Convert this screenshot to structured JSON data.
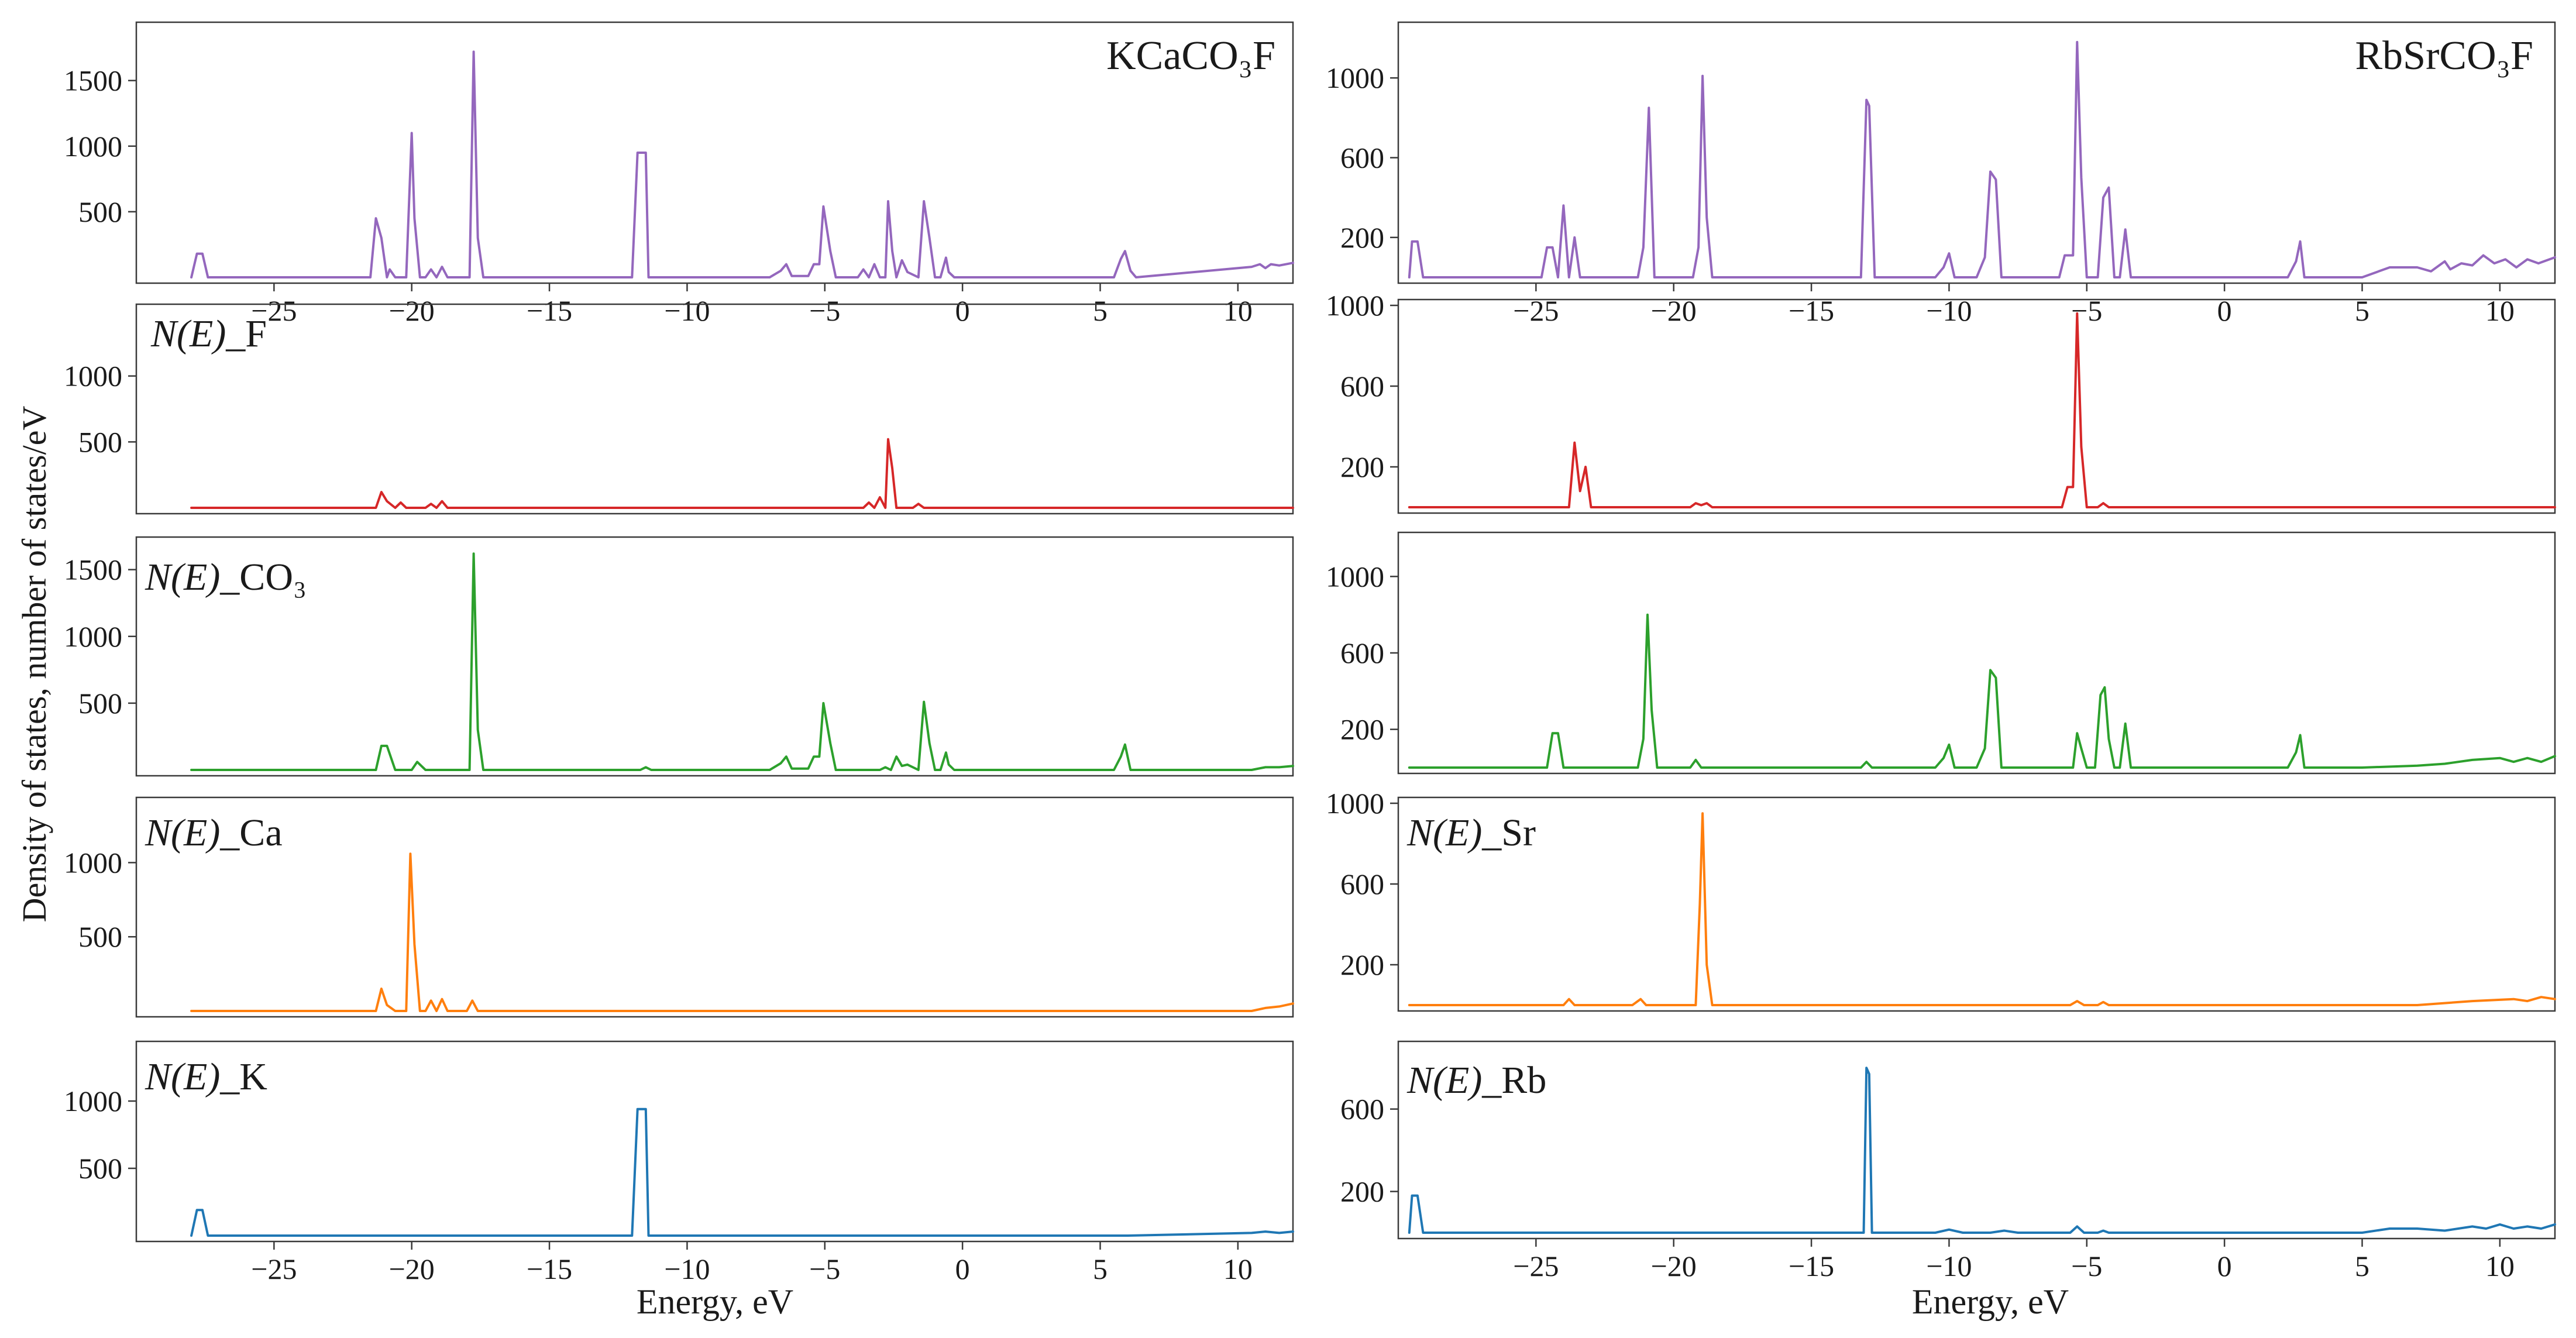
{
  "figure": {
    "ylabel": "Density of states, number of states/eV",
    "xlabel": "Energy, eV"
  },
  "colors": {
    "total": "#9467bd",
    "F": "#d62728",
    "CO3": "#2ca02c",
    "A": "#ff7f0e",
    "B": "#1f77b4"
  },
  "chart_data": [
    {
      "type": "line",
      "id": "kca-total",
      "title": "KCaCO₃F",
      "label": "",
      "color": "#9467bd",
      "xlim": [
        -30,
        12
      ],
      "ylim": [
        0,
        1900
      ],
      "yticks": [
        500,
        1000,
        1500
      ],
      "xticks": [
        -25,
        -20,
        -15,
        -10,
        -5,
        0,
        5,
        10
      ],
      "x": [
        -28,
        -27.8,
        -27.6,
        -27.4,
        -21.5,
        -21.3,
        -21.1,
        -20.9,
        -20.8,
        -20.6,
        -20.4,
        -20.2,
        -20.0,
        -19.9,
        -19.7,
        -19.5,
        -19.3,
        -19.1,
        -18.9,
        -18.7,
        -18.5,
        -17.9,
        -17.75,
        -17.6,
        -17.4,
        -17.2,
        -12.0,
        -11.8,
        -11.7,
        -11.5,
        -11.4,
        -11.2,
        -7.0,
        -6.6,
        -6.4,
        -6.2,
        -5.6,
        -5.4,
        -5.2,
        -5.05,
        -4.8,
        -4.6,
        -3.8,
        -3.6,
        -3.4,
        -3.2,
        -3.0,
        -2.8,
        -2.7,
        -2.55,
        -2.4,
        -2.2,
        -2.0,
        -1.6,
        -1.4,
        -1.2,
        -1.0,
        -0.8,
        -0.6,
        -0.5,
        -0.3,
        -0.1,
        0.1,
        5.5,
        5.75,
        5.9,
        6.1,
        6.3,
        10.5,
        10.8,
        11.0,
        11.2,
        11.5,
        12.0
      ],
      "values": [
        0,
        180,
        180,
        0,
        0,
        450,
        300,
        0,
        60,
        0,
        0,
        0,
        1100,
        450,
        0,
        0,
        60,
        0,
        80,
        0,
        0,
        0,
        1720,
        300,
        0,
        0,
        0,
        950,
        950,
        950,
        0,
        0,
        0,
        50,
        100,
        10,
        10,
        100,
        100,
        540,
        200,
        0,
        0,
        60,
        0,
        100,
        0,
        0,
        580,
        200,
        0,
        130,
        40,
        0,
        580,
        300,
        0,
        0,
        150,
        40,
        0,
        0,
        0,
        0,
        140,
        200,
        50,
        0,
        80,
        100,
        70,
        100,
        90,
        110
      ]
    },
    {
      "type": "line",
      "id": "kca-f",
      "title": "",
      "label": "F",
      "color": "#d62728",
      "xlim": [
        -30,
        12
      ],
      "ylim": [
        0,
        1500
      ],
      "yticks": [
        500,
        1000
      ],
      "xticks": [],
      "x": [
        -28,
        -21.3,
        -21.1,
        -20.9,
        -20.6,
        -20.4,
        -20.2,
        -19.5,
        -19.3,
        -19.1,
        -18.9,
        -18.7,
        -18.5,
        -3.6,
        -3.4,
        -3.2,
        -3.0,
        -2.8,
        -2.7,
        -2.55,
        -2.4,
        -1.8,
        -1.6,
        -1.4,
        -1.2,
        12.0
      ],
      "values": [
        0,
        0,
        120,
        50,
        0,
        40,
        0,
        0,
        30,
        0,
        50,
        0,
        0,
        0,
        40,
        0,
        80,
        0,
        520,
        300,
        0,
        0,
        30,
        0,
        0,
        0
      ]
    },
    {
      "type": "line",
      "id": "kca-co3",
      "title": "",
      "label": "CO₃",
      "color": "#2ca02c",
      "xlim": [
        -30,
        12
      ],
      "ylim": [
        0,
        1700
      ],
      "yticks": [
        500,
        1000,
        1500
      ],
      "xticks": [],
      "x": [
        -28,
        -21.3,
        -21.1,
        -20.9,
        -20.6,
        -20.0,
        -19.8,
        -19.5,
        -18.0,
        -17.9,
        -17.75,
        -17.6,
        -17.4,
        -11.7,
        -11.5,
        -11.3,
        -7.0,
        -6.6,
        -6.4,
        -6.2,
        -5.6,
        -5.4,
        -5.2,
        -5.05,
        -4.8,
        -4.6,
        -3.0,
        -2.8,
        -2.6,
        -2.4,
        -2.2,
        -2.0,
        -1.6,
        -1.4,
        -1.2,
        -1.0,
        -0.8,
        -0.6,
        -0.5,
        -0.3,
        -0.1,
        5.5,
        5.75,
        5.9,
        6.1,
        10.5,
        11.0,
        11.5,
        12.0
      ],
      "values": [
        0,
        0,
        180,
        180,
        0,
        0,
        60,
        0,
        0,
        0,
        1620,
        300,
        0,
        0,
        20,
        0,
        0,
        50,
        100,
        10,
        10,
        100,
        100,
        500,
        200,
        0,
        0,
        20,
        0,
        100,
        30,
        40,
        0,
        510,
        200,
        0,
        0,
        130,
        40,
        0,
        0,
        0,
        100,
        190,
        0,
        0,
        20,
        20,
        30
      ]
    },
    {
      "type": "line",
      "id": "kca-ca",
      "title": "",
      "label": "Ca",
      "color": "#ff7f0e",
      "xlim": [
        -30,
        12
      ],
      "ylim": [
        0,
        1400
      ],
      "yticks": [
        500,
        1000
      ],
      "xticks": [],
      "x": [
        -28,
        -21.3,
        -21.1,
        -20.9,
        -20.6,
        -20.2,
        -20.05,
        -19.9,
        -19.7,
        -19.5,
        -19.3,
        -19.1,
        -18.9,
        -18.7,
        -18.5,
        -18.0,
        -17.8,
        -17.6,
        -17.4,
        10.5,
        11.0,
        11.5,
        12.0
      ],
      "values": [
        0,
        0,
        150,
        40,
        0,
        0,
        1060,
        450,
        0,
        0,
        70,
        0,
        80,
        0,
        0,
        0,
        70,
        0,
        0,
        0,
        20,
        30,
        50
      ]
    },
    {
      "type": "line",
      "id": "kca-k",
      "title": "",
      "label": "K",
      "color": "#1f77b4",
      "xlim": [
        -30,
        12
      ],
      "ylim": [
        0,
        1400
      ],
      "yticks": [
        500,
        1000
      ],
      "xticks": [
        -25,
        -20,
        -15,
        -10,
        -5,
        0,
        5,
        10
      ],
      "x": [
        -28,
        -27.8,
        -27.6,
        -27.4,
        -12.0,
        -11.8,
        -11.7,
        -11.5,
        -11.4,
        -11.2,
        6.0,
        10.5,
        11.0,
        11.5,
        12.0
      ],
      "values": [
        0,
        190,
        190,
        0,
        0,
        940,
        940,
        940,
        0,
        0,
        0,
        20,
        30,
        20,
        30
      ]
    },
    {
      "type": "line",
      "id": "rbsr-total",
      "title": "RbSrCO₃F",
      "label": "",
      "color": "#9467bd",
      "xlim": [
        -30,
        12
      ],
      "ylim": [
        0,
        1250
      ],
      "yticks": [
        200,
        600,
        1000
      ],
      "xticks": [
        -25,
        -20,
        -15,
        -10,
        -5,
        0,
        5,
        10
      ],
      "x": [
        -29.6,
        -29.5,
        -29.3,
        -29.1,
        -24.8,
        -24.6,
        -24.4,
        -24.2,
        -24.0,
        -23.8,
        -23.6,
        -23.4,
        -21.5,
        -21.3,
        -21.1,
        -20.9,
        -20.7,
        -19.3,
        -19.1,
        -18.95,
        -18.8,
        -18.6,
        -13.4,
        -13.2,
        -13.0,
        -12.9,
        -12.7,
        -12.5,
        -10.5,
        -10.2,
        -10.0,
        -9.8,
        -9.0,
        -8.7,
        -8.5,
        -8.3,
        -8.1,
        -7.9,
        -7.7,
        -6.0,
        -5.8,
        -5.5,
        -5.35,
        -5.2,
        -5.0,
        -4.6,
        -4.4,
        -4.2,
        -4.0,
        -3.8,
        -3.6,
        -3.4,
        -3.2,
        2.3,
        2.6,
        2.75,
        2.9,
        5.0,
        6.0,
        7.0,
        7.5,
        8.0,
        8.2,
        8.6,
        9.0,
        9.4,
        9.8,
        10.2,
        10.6,
        11.0,
        11.4,
        12.0
      ],
      "values": [
        0,
        180,
        180,
        0,
        0,
        150,
        150,
        0,
        360,
        0,
        200,
        0,
        0,
        0,
        150,
        850,
        0,
        0,
        150,
        1010,
        300,
        0,
        0,
        0,
        890,
        860,
        0,
        0,
        0,
        50,
        120,
        0,
        0,
        100,
        530,
        490,
        0,
        0,
        0,
        0,
        110,
        110,
        1180,
        500,
        0,
        0,
        400,
        450,
        0,
        0,
        240,
        0,
        0,
        0,
        80,
        180,
        0,
        0,
        50,
        50,
        30,
        80,
        40,
        70,
        60,
        110,
        70,
        90,
        50,
        90,
        70,
        100
      ]
    },
    {
      "type": "line",
      "id": "rbsr-f",
      "title": "",
      "label": "",
      "color": "#d62728",
      "xlim": [
        -30,
        12
      ],
      "ylim": [
        0,
        1000
      ],
      "yticks": [
        200,
        600,
        1000
      ],
      "xticks": [],
      "x": [
        -29.6,
        -24.0,
        -23.8,
        -23.6,
        -23.4,
        -23.2,
        -23.0,
        -19.4,
        -19.2,
        -19.0,
        -18.8,
        -18.6,
        -5.9,
        -5.7,
        -5.5,
        -5.35,
        -5.2,
        -5.0,
        -4.6,
        -4.4,
        -4.2,
        12.0
      ],
      "values": [
        0,
        0,
        0,
        320,
        80,
        200,
        0,
        0,
        20,
        10,
        20,
        0,
        0,
        100,
        100,
        960,
        300,
        0,
        0,
        20,
        0,
        0
      ]
    },
    {
      "type": "line",
      "id": "rbsr-co3",
      "title": "",
      "label": "",
      "color": "#2ca02c",
      "xlim": [
        -30,
        12
      ],
      "ylim": [
        0,
        1200
      ],
      "yticks": [
        200,
        600,
        1000
      ],
      "xticks": [],
      "x": [
        -29.6,
        -24.6,
        -24.4,
        -24.2,
        -24.0,
        -21.3,
        -21.1,
        -20.95,
        -20.8,
        -20.6,
        -19.4,
        -19.2,
        -19.0,
        -13.2,
        -13.0,
        -12.8,
        -10.5,
        -10.2,
        -10.0,
        -9.8,
        -9.0,
        -8.7,
        -8.5,
        -8.3,
        -8.1,
        -7.9,
        -5.7,
        -5.5,
        -5.35,
        -5.2,
        -5.0,
        -4.7,
        -4.5,
        -4.35,
        -4.2,
        -4.0,
        -3.8,
        -3.6,
        -3.4,
        -3.2,
        2.3,
        2.6,
        2.75,
        2.9,
        5.0,
        7.0,
        8.0,
        9.0,
        10.0,
        10.5,
        11.0,
        11.5,
        12.0
      ],
      "values": [
        0,
        0,
        180,
        180,
        0,
        0,
        150,
        800,
        300,
        0,
        0,
        40,
        0,
        0,
        30,
        0,
        0,
        50,
        120,
        0,
        0,
        100,
        510,
        470,
        0,
        0,
        0,
        0,
        180,
        100,
        0,
        0,
        380,
        420,
        150,
        0,
        0,
        230,
        0,
        0,
        0,
        80,
        170,
        0,
        0,
        10,
        20,
        40,
        50,
        30,
        50,
        30,
        60
      ]
    },
    {
      "type": "line",
      "id": "rbsr-sr",
      "title": "",
      "label": "Sr",
      "color": "#ff7f0e",
      "xlim": [
        -30,
        12
      ],
      "ylim": [
        0,
        1000
      ],
      "yticks": [
        200,
        600,
        1000
      ],
      "xticks": [],
      "x": [
        -29.6,
        -24.0,
        -23.8,
        -23.6,
        -21.5,
        -21.2,
        -21.0,
        -19.2,
        -19.05,
        -18.95,
        -18.8,
        -18.6,
        -5.6,
        -5.35,
        -5.1,
        -4.6,
        -4.4,
        -4.2,
        7.0,
        9.0,
        10.5,
        11.0,
        11.5,
        12.0
      ],
      "values": [
        0,
        0,
        30,
        0,
        0,
        30,
        0,
        0,
        500,
        950,
        200,
        0,
        0,
        20,
        0,
        0,
        15,
        0,
        0,
        20,
        30,
        20,
        40,
        30
      ]
    },
    {
      "type": "line",
      "id": "rbsr-rb",
      "title": "",
      "label": "Rb",
      "color": "#1f77b4",
      "xlim": [
        -30,
        12
      ],
      "ylim": [
        0,
        900
      ],
      "yticks": [
        200,
        600
      ],
      "xticks": [
        -25,
        -20,
        -15,
        -10,
        -5,
        0,
        5,
        10
      ],
      "x": [
        -29.6,
        -29.5,
        -29.3,
        -29.1,
        -13.3,
        -13.1,
        -13.0,
        -12.9,
        -12.8,
        -12.6,
        -10.5,
        -10.0,
        -9.5,
        -8.5,
        -8.0,
        -7.5,
        -5.6,
        -5.35,
        -5.1,
        -4.6,
        -4.4,
        -4.2,
        5.0,
        6.0,
        7.0,
        8.0,
        9.0,
        9.5,
        10.0,
        10.5,
        11.0,
        11.5,
        12.0
      ],
      "values": [
        0,
        180,
        180,
        0,
        0,
        0,
        800,
        770,
        0,
        0,
        0,
        15,
        0,
        0,
        10,
        0,
        0,
        30,
        0,
        0,
        10,
        0,
        0,
        20,
        20,
        10,
        30,
        20,
        40,
        20,
        30,
        20,
        40
      ]
    }
  ]
}
